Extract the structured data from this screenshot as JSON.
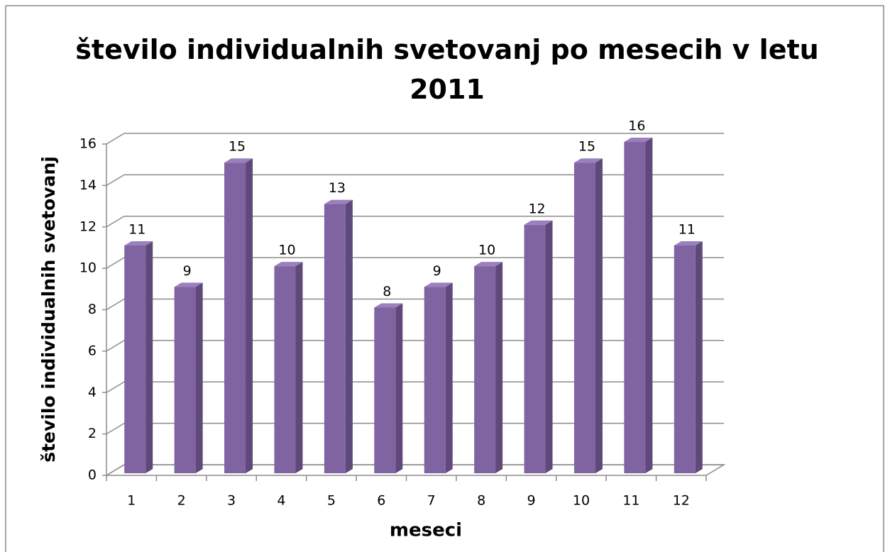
{
  "chart_data": {
    "type": "bar3d",
    "title": "število individualnih svetovanj po mesecih v letu 2011",
    "x_label": "meseci",
    "y_label": "število individualnih svetovanj",
    "categories": [
      "1",
      "2",
      "3",
      "4",
      "5",
      "6",
      "7",
      "8",
      "9",
      "10",
      "11",
      "12"
    ],
    "values": [
      11,
      9,
      15,
      10,
      13,
      8,
      9,
      10,
      12,
      15,
      16,
      11
    ],
    "color": "#8064a2",
    "ylim": [
      0,
      16
    ],
    "yticks": [
      0,
      2,
      4,
      6,
      8,
      10,
      12,
      14,
      16
    ],
    "grid": true
  }
}
